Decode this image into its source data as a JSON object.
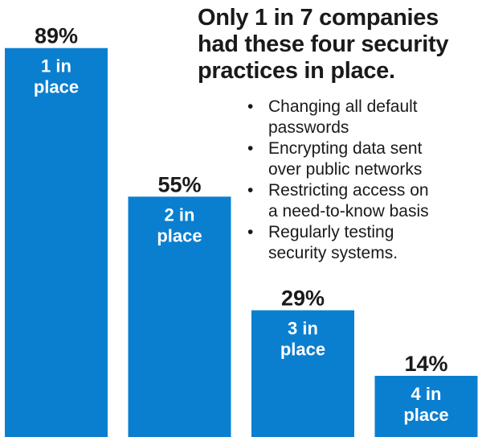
{
  "chart_data": {
    "type": "bar",
    "title": [
      "Only 1 in 7 companies",
      "had these four security",
      "practices in place."
    ],
    "categories": [
      [
        "1 in",
        "place"
      ],
      [
        "2 in",
        "place"
      ],
      [
        "3 in",
        "place"
      ],
      [
        "4 in",
        "place"
      ]
    ],
    "values": [
      89,
      55,
      29,
      14
    ],
    "value_labels": [
      "89%",
      "55%",
      "29%",
      "14%"
    ],
    "ylim": [
      0,
      100
    ],
    "grid": false,
    "bar_color": "#0a7fd0",
    "label_color": "#ffffff",
    "value_label_color": "#1a1a1a"
  },
  "bullets": [
    [
      "Changing all default",
      "passwords"
    ],
    [
      "Encrypting data sent",
      "over public networks"
    ],
    [
      "Restricting access on",
      "a need-to-know basis"
    ],
    [
      "Regularly testing",
      "security systems."
    ]
  ],
  "bullet_glyph": "•"
}
